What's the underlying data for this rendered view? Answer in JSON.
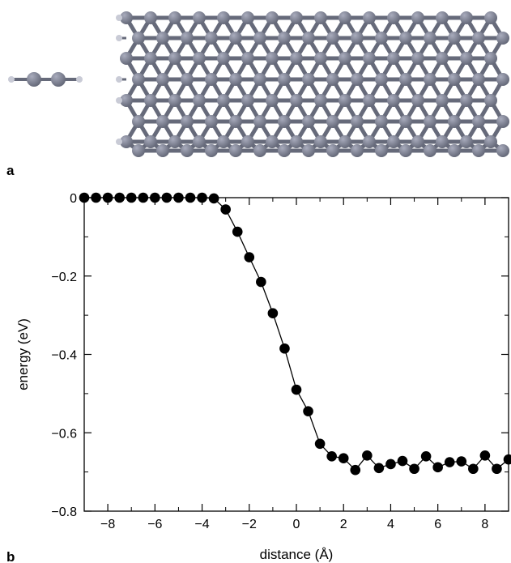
{
  "panels": {
    "a_label": "a",
    "b_label": "b"
  },
  "colors": {
    "atom": "#666a7a",
    "atom_highlight": "#a9acbd",
    "hydrogen": "#c9cbd6",
    "marker": "#000000",
    "line": "#000000"
  },
  "chart_data": {
    "type": "line",
    "xlabel": "distance (Å)",
    "ylabel": "energy (eV)",
    "xlim": [
      -9,
      9
    ],
    "ylim": [
      -0.8,
      0
    ],
    "xticks": [
      -8,
      -6,
      -4,
      -2,
      0,
      2,
      4,
      6,
      8
    ],
    "xtick_labels": [
      "−8",
      "−6",
      "−4",
      "−2",
      "0",
      "2",
      "4",
      "6",
      "8"
    ],
    "yticks": [
      0,
      -0.2,
      -0.4,
      -0.6,
      -0.8
    ],
    "ytick_labels": [
      "0",
      "−0.2",
      "−0.4",
      "−0.6",
      "−0.8"
    ],
    "grid": false,
    "series": [
      {
        "x": [
          -9.0,
          -8.5,
          -8.0,
          -7.5,
          -7.0,
          -6.5,
          -6.0,
          -5.5,
          -5.0,
          -4.5,
          -4.0,
          -3.5,
          -3.0,
          -2.5,
          -2.0,
          -1.5,
          -1.0,
          -0.5,
          0.0,
          0.5,
          1.0,
          1.5,
          2.0,
          2.5,
          3.0,
          3.5,
          4.0,
          4.5,
          5.0,
          5.5,
          6.0,
          6.5,
          7.0,
          7.5,
          8.0,
          8.5,
          9.0
        ],
        "y": [
          0.0,
          0.0,
          0.0,
          0.0,
          0.0,
          0.0,
          0.0,
          0.0,
          0.0,
          0.0,
          0.0,
          -0.002,
          -0.03,
          -0.087,
          -0.152,
          -0.215,
          -0.295,
          -0.385,
          -0.49,
          -0.545,
          -0.628,
          -0.66,
          -0.665,
          -0.695,
          -0.658,
          -0.69,
          -0.68,
          -0.672,
          -0.692,
          -0.66,
          -0.688,
          -0.675,
          -0.673,
          -0.692,
          -0.658,
          -0.692,
          -0.668
        ]
      }
    ]
  }
}
